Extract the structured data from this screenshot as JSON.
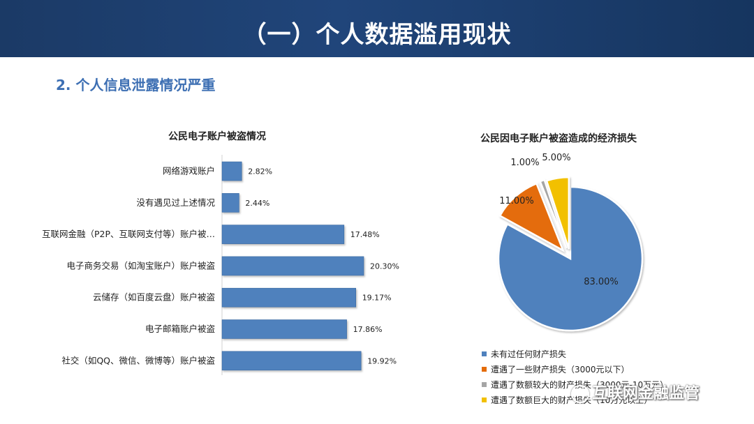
{
  "header": {
    "title": "（一）个人数据滥用现状"
  },
  "section": {
    "subtitle": "2.   个人信息泄露情况严重"
  },
  "watermark": {
    "text": "互联网金融监管",
    "icon": "wechat-icon"
  },
  "colors": {
    "banner": "#1e4272",
    "bar": "#4f81bd",
    "pie": [
      "#4f81bd",
      "#e46c0a",
      "#a5a5a5",
      "#f2c000"
    ]
  },
  "chart_data": [
    {
      "type": "bar",
      "orientation": "horizontal",
      "title": "公民电子账户被盗情况",
      "categories": [
        "网络游戏账户",
        "没有遇见过上述情况",
        "互联网金融（P2P、互联网支付等）账户被…",
        "电子商务交易（如淘宝账户）账户被盗",
        "云储存（如百度云盘）账户被盗",
        "电子邮箱账户被盗",
        "社交（如QQ、微信、微博等）账户被盗"
      ],
      "values": [
        2.82,
        2.44,
        17.48,
        20.3,
        19.17,
        17.86,
        19.92
      ],
      "value_labels": [
        "2.82%",
        "2.44%",
        "17.48%",
        "20.30%",
        "19.17%",
        "17.86%",
        "19.92%"
      ],
      "xlim": [
        0,
        22
      ],
      "grid": false
    },
    {
      "type": "pie",
      "title": "公民因电子账户被盗造成的经济损失",
      "labels": [
        "未有过任何财产损失",
        "遭遇了一些财产损失（3000元以下）",
        "遭遇了数额较大的财产损失（3000元-10万元）",
        "遭遇了数额巨大的财产损失（10万元以上）"
      ],
      "values": [
        83.0,
        11.0,
        1.0,
        5.0
      ],
      "value_labels": [
        "83.00%",
        "11.00%",
        "1.00%",
        "5.00%"
      ],
      "legend": "bottom"
    }
  ]
}
